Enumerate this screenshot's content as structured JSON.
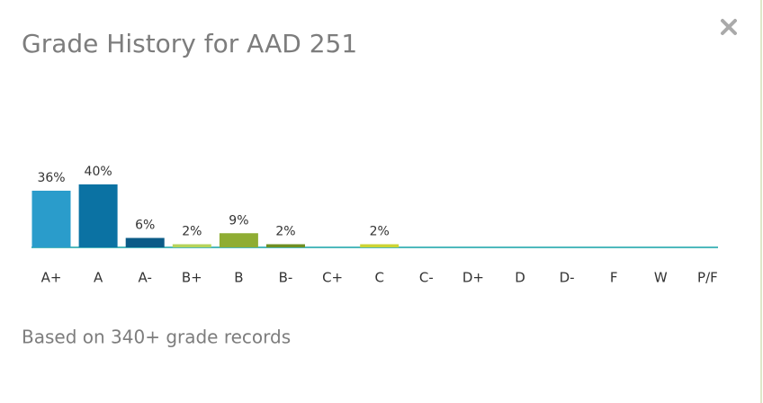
{
  "chart_data": {
    "type": "bar",
    "title": "Grade History for AAD 251",
    "footnote": "Based on 340+ grade records",
    "categories": [
      "A+",
      "A",
      "A-",
      "B+",
      "B",
      "B-",
      "C+",
      "C",
      "C-",
      "D+",
      "D",
      "D-",
      "F",
      "W",
      "P/F"
    ],
    "values": [
      36,
      40,
      6,
      2,
      9,
      2,
      0,
      2,
      0,
      0,
      0,
      0,
      0,
      0,
      0
    ],
    "value_labels": [
      "36%",
      "40%",
      "6%",
      "2%",
      "9%",
      "2%",
      null,
      "2%",
      null,
      null,
      null,
      null,
      null,
      null,
      null
    ],
    "colors": [
      "#2a9ccb",
      "#0b72a3",
      "#0b5b87",
      "#b5d35a",
      "#8fad33",
      "#6f8f22",
      "#2a9ccb",
      "#cdd434",
      "#2a9ccb",
      "#2a9ccb",
      "#2a9ccb",
      "#2a9ccb",
      "#2a9ccb",
      "#2a9ccb",
      "#2a9ccb"
    ],
    "baseline_color": "#4fb9bd"
  }
}
